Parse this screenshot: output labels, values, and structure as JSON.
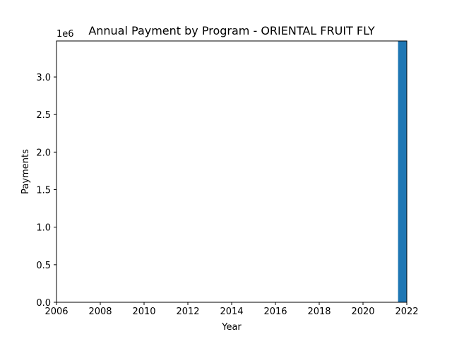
{
  "chart_data": {
    "type": "bar",
    "title": "Annual Payment by Program - ORIENTAL FRUIT FLY",
    "xlabel": "Year",
    "ylabel": "Payments",
    "y_offset_label": "1e6",
    "xlim": [
      2006,
      2022
    ],
    "ylim": [
      0,
      3.48
    ],
    "xticks": [
      2006,
      2008,
      2010,
      2012,
      2014,
      2016,
      2018,
      2020,
      2022
    ],
    "xtick_labels": [
      "2006",
      "2008",
      "2010",
      "2012",
      "2014",
      "2016",
      "2018",
      "2020",
      "2022"
    ],
    "yticks": [
      0,
      0.5,
      1.0,
      1.5,
      2.0,
      2.5,
      3.0
    ],
    "ytick_labels": [
      "0.0",
      "0.5",
      "1.0",
      "1.5",
      "2.0",
      "2.5",
      "3.0"
    ],
    "bar_width_years": 0.8,
    "x": [
      2022
    ],
    "values": [
      3.48
    ],
    "value_unit_multiplier": 1000000,
    "bar_color": "#1f77b4",
    "grid": false,
    "legend": "none"
  }
}
